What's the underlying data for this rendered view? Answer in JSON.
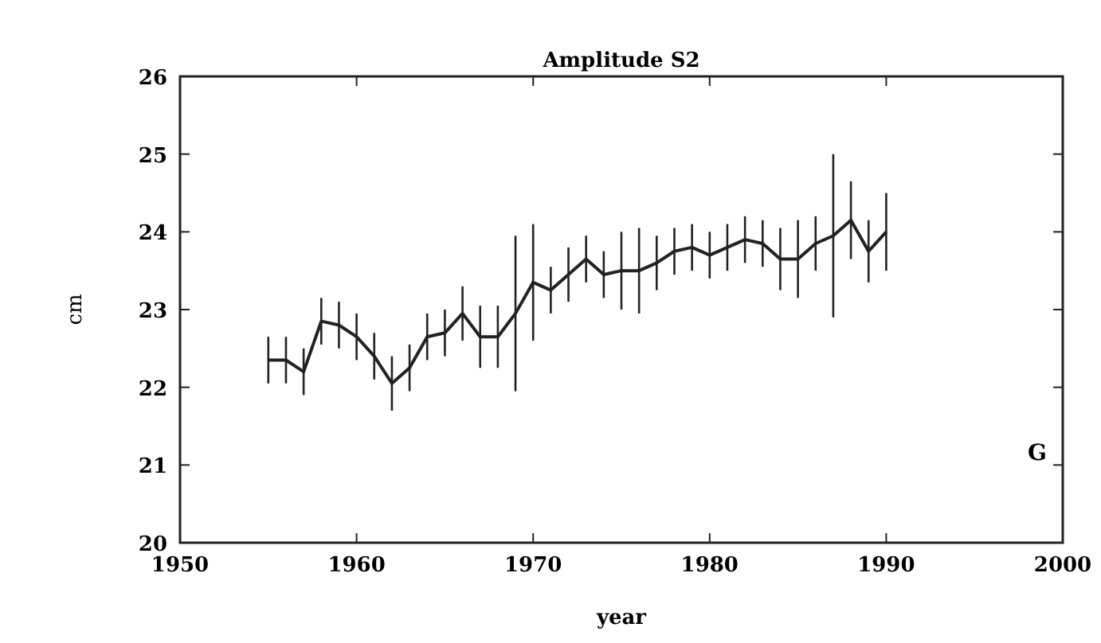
{
  "chart_data": {
    "type": "line",
    "title": "Amplitude   S2",
    "xlabel": "year",
    "ylabel": "cm",
    "x": [
      1955,
      1956,
      1957,
      1958,
      1959,
      1960,
      1961,
      1962,
      1963,
      1964,
      1965,
      1966,
      1967,
      1968,
      1969,
      1970,
      1971,
      1972,
      1973,
      1974,
      1975,
      1976,
      1977,
      1978,
      1979,
      1980,
      1981,
      1982,
      1983,
      1984,
      1985,
      1986,
      1987,
      1988,
      1989,
      1990
    ],
    "values": [
      22.35,
      22.35,
      22.2,
      22.85,
      22.8,
      22.65,
      22.4,
      22.05,
      22.25,
      22.65,
      22.7,
      22.95,
      22.65,
      22.65,
      22.95,
      23.35,
      23.25,
      23.45,
      23.65,
      23.45,
      23.5,
      23.5,
      23.6,
      23.75,
      23.8,
      23.7,
      23.8,
      23.9,
      23.85,
      23.65,
      23.65,
      23.85,
      23.95,
      24.15,
      23.75,
      24.0
    ],
    "errors": [
      0.3,
      0.3,
      0.3,
      0.3,
      0.3,
      0.3,
      0.3,
      0.35,
      0.3,
      0.3,
      0.3,
      0.35,
      0.4,
      0.4,
      1.0,
      0.75,
      0.3,
      0.35,
      0.3,
      0.3,
      0.5,
      0.55,
      0.35,
      0.3,
      0.3,
      0.3,
      0.3,
      0.3,
      0.3,
      0.4,
      0.5,
      0.35,
      1.05,
      0.5,
      0.4,
      0.5
    ],
    "color": "#222222",
    "marker": "none",
    "line_style": "solid",
    "xlim": [
      1950,
      2000
    ],
    "xticks": [
      1950,
      1960,
      1970,
      1980,
      1990,
      2000
    ],
    "ylim": [
      20,
      26
    ],
    "yticks": [
      20,
      21,
      22,
      23,
      24,
      25,
      26
    ],
    "annotations": [
      "G"
    ]
  }
}
